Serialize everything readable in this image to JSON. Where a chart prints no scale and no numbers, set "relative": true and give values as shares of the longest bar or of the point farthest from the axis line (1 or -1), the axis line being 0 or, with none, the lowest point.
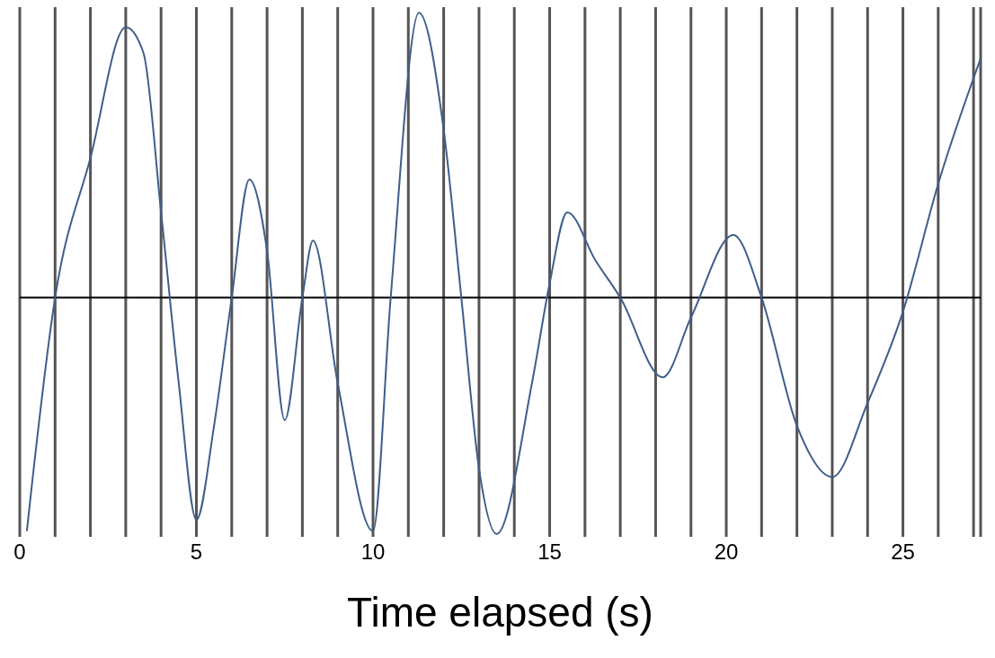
{
  "chart_data": {
    "type": "line",
    "xlabel": "Time elapsed (s)",
    "relative": true,
    "grid": "x",
    "marker": "none",
    "line_style": "solid",
    "legend": false,
    "xlim": [
      0,
      27.2
    ],
    "xticks": [
      0,
      {
        "value": 1,
        "label": null
      },
      {
        "value": 2,
        "label": null
      },
      {
        "value": 3,
        "label": null
      },
      {
        "value": 4,
        "label": null
      },
      5,
      {
        "value": 6,
        "label": null
      },
      {
        "value": 7,
        "label": null
      },
      {
        "value": 8,
        "label": null
      },
      {
        "value": 9,
        "label": null
      },
      10,
      {
        "value": 11,
        "label": null
      },
      {
        "value": 12,
        "label": null
      },
      {
        "value": 13,
        "label": null
      },
      {
        "value": 14,
        "label": null
      },
      15,
      {
        "value": 16,
        "label": null
      },
      {
        "value": 17,
        "label": null
      },
      {
        "value": 18,
        "label": null
      },
      {
        "value": 19,
        "label": null
      },
      20,
      {
        "value": 21,
        "label": null
      },
      {
        "value": 22,
        "label": null
      },
      {
        "value": 23,
        "label": null
      },
      {
        "value": 24,
        "label": null
      },
      25,
      {
        "value": 26,
        "label": null
      },
      {
        "value": 27,
        "label": null
      }
    ],
    "x": [
      0.2,
      1,
      2,
      3,
      3.5,
      4,
      4.5,
      5,
      5.5,
      6,
      6.5,
      7,
      7.5,
      8,
      8.3,
      9,
      10,
      10.5,
      11.3,
      12,
      12.5,
      13,
      13.5,
      14.5,
      15,
      15.5,
      16.3,
      17,
      18.2,
      19,
      20.2,
      21,
      22,
      23,
      24,
      25,
      26,
      27.2
    ],
    "series": [
      {
        "color": "#3e5f8a",
        "values": [
          -0.82,
          0,
          0.49,
          0.95,
          0.86,
          0.3,
          -0.3,
          -0.78,
          -0.45,
          0,
          0.415,
          0.165,
          -0.43,
          0,
          0.2,
          -0.3,
          -0.82,
          0,
          1,
          0.59,
          0,
          -0.6,
          -0.83,
          -0.3,
          0.05,
          0.3,
          0.13,
          0,
          -0.28,
          -0.07,
          0.22,
          0,
          -0.45,
          -0.63,
          -0.37,
          -0.05,
          0.4,
          0.84
        ]
      }
    ]
  }
}
